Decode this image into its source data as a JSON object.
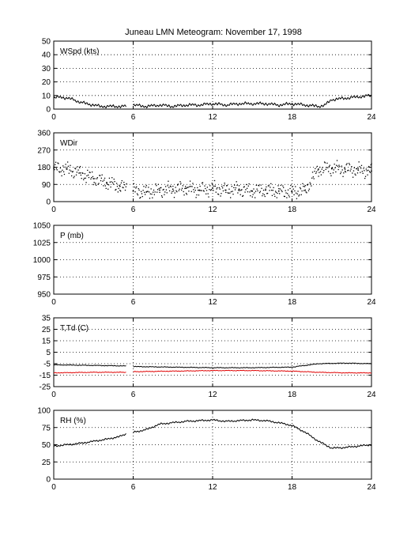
{
  "title": "Juneau LMN Meteogram:  November 17, 1998",
  "colors": {
    "temperature": "#000000",
    "dewpoint": "#e00000",
    "axes": "#000000",
    "background": "#ffffff"
  },
  "chart_data": [
    {
      "type": "line",
      "label": "WSpd (kts)",
      "x_ticks": [
        "0",
        "6",
        "12",
        "18",
        "24"
      ],
      "y_ticks": [
        "0",
        "10",
        "20",
        "30",
        "40",
        "50"
      ],
      "xlim": [
        0,
        24
      ],
      "ylim": [
        0,
        50
      ],
      "grid": true,
      "gaps": [
        [
          5.5,
          6.0
        ]
      ],
      "series": [
        {
          "x": [
            0,
            0.5,
            1,
            1.5,
            2,
            2.5,
            3,
            3.5,
            4,
            5,
            5.5,
            6,
            7,
            8,
            9,
            10,
            11,
            12,
            13,
            14,
            15,
            16,
            17,
            18,
            19,
            20,
            20.5,
            21,
            22,
            23,
            24
          ],
          "y": [
            8,
            9,
            8,
            7,
            5,
            4,
            3,
            2,
            2,
            2,
            2,
            3,
            2,
            3,
            2,
            3,
            3,
            4,
            3,
            4,
            4,
            4,
            3,
            4,
            3,
            2,
            3,
            7,
            8,
            9,
            10
          ]
        }
      ]
    },
    {
      "type": "scatter",
      "label": "WDir",
      "x_ticks": [
        "0",
        "6",
        "12",
        "18",
        "24"
      ],
      "y_ticks": [
        "0",
        "90",
        "180",
        "270",
        "360"
      ],
      "xlim": [
        0,
        24
      ],
      "ylim": [
        0,
        360
      ],
      "grid": true,
      "gaps": [
        [
          5.5,
          6.0
        ]
      ],
      "series": [
        {
          "x": [
            0,
            1,
            2,
            3,
            4,
            5,
            6,
            7,
            8,
            9,
            10,
            11,
            12,
            13,
            14,
            15,
            16,
            17,
            18,
            19,
            20,
            21,
            22,
            23,
            24
          ],
          "y": [
            175,
            170,
            150,
            120,
            100,
            80,
            55,
            50,
            60,
            65,
            70,
            60,
            70,
            60,
            65,
            55,
            60,
            55,
            50,
            60,
            170,
            175,
            170,
            165,
            160
          ]
        }
      ]
    },
    {
      "type": "line",
      "label": "P (mb)",
      "x_ticks": [
        "0",
        "6",
        "12",
        "18",
        "24"
      ],
      "y_ticks": [
        "950",
        "975",
        "1000",
        "1025",
        "1050"
      ],
      "xlim": [
        0,
        24
      ],
      "ylim": [
        950,
        1050
      ],
      "grid": true,
      "series": []
    },
    {
      "type": "line",
      "label": "T,Td (C)",
      "x_ticks": [
        "0",
        "6",
        "12",
        "18",
        "24"
      ],
      "y_ticks": [
        "-25",
        "-15",
        "-5",
        "5",
        "15",
        "25",
        "35"
      ],
      "xlim": [
        0,
        24
      ],
      "ylim": [
        -25,
        35
      ],
      "grid": true,
      "gaps": [
        [
          5.5,
          6.0
        ]
      ],
      "series": [
        {
          "x": [
            0,
            3,
            5.5,
            6,
            9,
            12,
            15,
            18,
            20,
            22,
            24
          ],
          "y": [
            -6,
            -6.5,
            -7,
            -7.5,
            -8,
            -8.5,
            -8.5,
            -8,
            -5,
            -4.5,
            -5
          ]
        },
        {
          "x": [
            0,
            3,
            5.5,
            6,
            9,
            12,
            15,
            18,
            20,
            22,
            24
          ],
          "y": [
            -13,
            -12.5,
            -12.5,
            -12,
            -11.5,
            -11,
            -11,
            -11.5,
            -12.5,
            -13,
            -13
          ]
        }
      ]
    },
    {
      "type": "line",
      "label": "RH (%)",
      "x_ticks": [
        "0",
        "6",
        "12",
        "18",
        "24"
      ],
      "y_ticks": [
        "0",
        "25",
        "50",
        "75",
        "100"
      ],
      "xlim": [
        0,
        24
      ],
      "ylim": [
        0,
        100
      ],
      "grid": true,
      "gaps": [
        [
          5.5,
          6.0
        ]
      ],
      "series": [
        {
          "x": [
            0,
            1,
            2,
            3,
            4,
            5,
            5.5,
            6,
            7,
            8,
            9,
            10,
            11,
            12,
            13,
            14,
            15,
            16,
            17,
            18,
            19,
            20,
            21,
            22,
            23,
            24
          ],
          "y": [
            48,
            50,
            52,
            55,
            58,
            62,
            66,
            68,
            72,
            80,
            82,
            84,
            85,
            86,
            84,
            85,
            86,
            85,
            82,
            78,
            68,
            55,
            45,
            46,
            48,
            50
          ]
        }
      ]
    }
  ]
}
